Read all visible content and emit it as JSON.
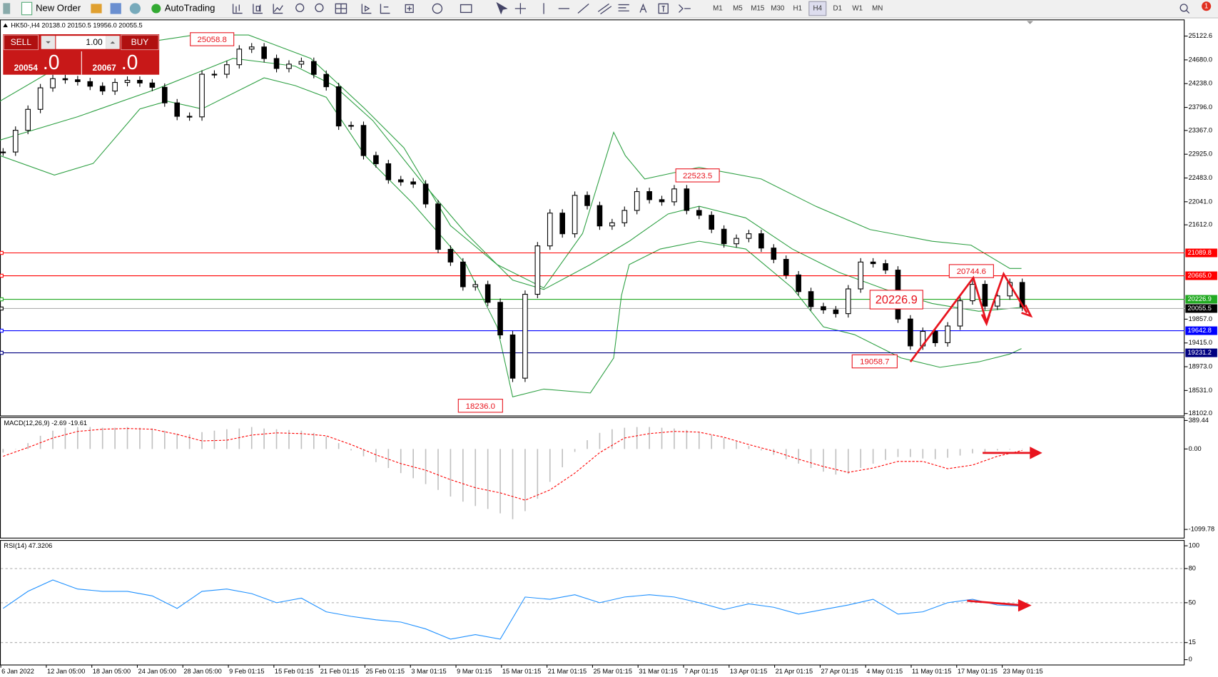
{
  "ui": {
    "new_order": "New Order",
    "auto_trading": "AutoTrading",
    "timeframes": [
      "M1",
      "M5",
      "M15",
      "M30",
      "H1",
      "H4",
      "D1",
      "W1",
      "MN"
    ],
    "alert_badge": "1",
    "trade_panel": {
      "sell": "SELL",
      "buy": "BUY",
      "volume": "1.00",
      "sell_big": "20054",
      "sell_small": ".0",
      "buy_big": "20067",
      "buy_small": ".0"
    }
  },
  "chart_data": [
    {
      "type": "candlestick",
      "title": "HK50-,H4 20138.0 20150.5 19956.0 20055.5",
      "values": [
        22966,
        23370,
        23760,
        24160,
        24330,
        24310,
        24275,
        24190,
        24100,
        24260,
        24300,
        24250,
        24170,
        23880,
        23630,
        23620,
        24413,
        24413,
        24590,
        24880,
        24920,
        24705,
        24520,
        24600,
        24650,
        24410,
        24180,
        23450,
        23460,
        22900,
        22748,
        22450,
        22410,
        22370,
        22000,
        21156,
        20920,
        20460,
        20500,
        20170,
        19564,
        18760,
        20320,
        21220,
        21830,
        21446,
        22160,
        21970,
        21591,
        21650,
        21880,
        22230,
        22080,
        22040,
        22280,
        21880,
        21790,
        21530,
        21260,
        21360,
        21446,
        21180,
        20970,
        20680,
        20370,
        20090,
        20030,
        19960,
        20420,
        20920,
        20890,
        20770,
        19860,
        19360,
        19630,
        19419,
        19730,
        20200,
        20505,
        20100,
        20290,
        20540,
        20084
      ],
      "ylim": [
        18065,
        25417
      ],
      "yticks": [
        25122.6,
        {
          "value": 24680,
          "label": "24680.0"
        },
        {
          "value": 24238,
          "label": "24238.0"
        },
        {
          "value": 23796,
          "label": "23796.0"
        },
        {
          "value": 23367,
          "label": "23367.0"
        },
        {
          "value": 22925,
          "label": "22925.0"
        },
        {
          "value": 22483,
          "label": "22483.0"
        },
        {
          "value": 22041,
          "label": "22041.0"
        },
        {
          "value": 21612,
          "label": "21612.0"
        },
        {
          "value": 19857,
          "label": "19857.0"
        },
        {
          "value": 19415,
          "label": "19415.0"
        },
        {
          "value": 18973,
          "label": "18973.0"
        },
        {
          "value": 18531,
          "label": "18531.0"
        },
        {
          "value": 18102,
          "label": "18102.0"
        }
      ],
      "levels": [
        {
          "value": 21089.8,
          "color": "#ff0000"
        },
        {
          "value": 20665,
          "label": "20665.0",
          "color": "#ff0000"
        },
        {
          "value": 20226.9,
          "color": "#22aa22"
        },
        {
          "value": 20055.5,
          "color": "#000000",
          "line_color": "#b0b0b0"
        },
        {
          "value": 19642.8,
          "color": "#0000ff"
        },
        {
          "value": 19231.2,
          "color": "#000080"
        }
      ],
      "annotations": [
        "25058.8",
        "22523.5",
        "18236.0",
        "20744.6",
        "20226.9",
        "19058.7"
      ],
      "time_labels": [
        "6 Jan 2022",
        "12 Jan 05:00",
        "18 Jan 05:00",
        "24 Jan 05:00",
        "28 Jan 05:00",
        "9 Feb 01:15",
        "15 Feb 01:15",
        "21 Feb 01:15",
        "25 Feb 01:15",
        "3 Mar 01:15",
        "9 Mar 01:15",
        "15 Mar 01:15",
        "21 Mar 01:15",
        "25 Mar 01:15",
        "31 Mar 01:15",
        "7 Apr 01:15",
        "13 Apr 01:15",
        "21 Apr 01:15",
        "27 Apr 01:15",
        "4 May 01:15",
        "11 May 01:15",
        "17 May 01:15",
        "23 May 01:15"
      ]
    },
    {
      "type": "macd",
      "title": "MACD(12,26,9) -2.69 -19.61",
      "values": [
        -50,
        0,
        80,
        180,
        250,
        290,
        300,
        300,
        290,
        290,
        300,
        290,
        280,
        250,
        210,
        200,
        230,
        250,
        270,
        280,
        300,
        280,
        270,
        260,
        250,
        220,
        170,
        80,
        -20,
        -100,
        -180,
        -260,
        -330,
        -400,
        -480,
        -560,
        -650,
        -720,
        -780,
        -820,
        -880,
        -960,
        -850,
        -680,
        -450,
        -250,
        -40,
        120,
        220,
        270,
        290,
        300,
        300,
        290,
        280,
        260,
        230,
        190,
        150,
        100,
        40,
        -20,
        -80,
        -140,
        -200,
        -260,
        -310,
        -350,
        -340,
        -260,
        -200,
        -150,
        -110,
        -110,
        -130,
        -140,
        -120,
        -90,
        -60,
        -40,
        -20,
        -10,
        -3
      ],
      "signal": [
        -100,
        20,
        150,
        240,
        270,
        280,
        270,
        200,
        110,
        120,
        190,
        220,
        210,
        180,
        60,
        -80,
        -200,
        -290,
        -420,
        -530,
        -600,
        -700,
        -560,
        -330,
        -50,
        150,
        210,
        240,
        230,
        160,
        60,
        -30,
        -140,
        -240,
        -320,
        -260,
        -170,
        -170,
        -270,
        -220,
        -100,
        -20
      ],
      "color": "#c0c0c0",
      "signal_color": "#ff0000",
      "ylim": [
        -1213,
        425
      ],
      "yticks": [
        {
          "value": 389.44,
          "label": "389.44"
        },
        {
          "value": 0,
          "label": "0.00"
        },
        {
          "value": -1099.78,
          "label": "-1099.78"
        }
      ]
    },
    {
      "type": "line",
      "title": "RSI(14) 47.3206",
      "values": [
        45,
        60,
        70,
        62,
        60,
        60,
        56,
        45,
        60,
        62,
        58,
        50,
        54,
        42,
        38,
        35,
        33,
        27,
        18,
        22,
        18,
        55,
        53,
        57,
        50,
        55,
        57,
        55,
        50,
        44,
        49,
        46,
        40,
        44,
        48,
        53,
        40,
        42,
        50,
        53,
        48,
        47
      ],
      "color": "#1e90ff",
      "ylim": [
        -5,
        103
      ],
      "yticks": [
        100,
        80,
        50,
        15,
        0
      ]
    }
  ]
}
